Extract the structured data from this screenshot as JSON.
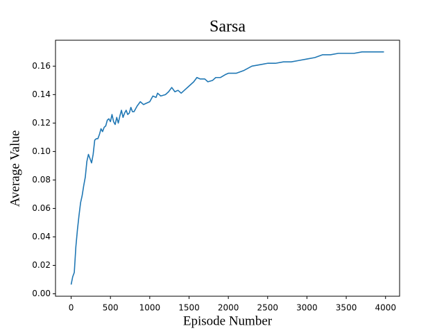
{
  "chart_data": {
    "type": "line",
    "title": "Sarsa",
    "x_label": "Episode Number",
    "y_label": "Average Value",
    "x": [
      0,
      20,
      40,
      60,
      80,
      100,
      120,
      140,
      160,
      180,
      200,
      220,
      240,
      260,
      280,
      300,
      320,
      340,
      360,
      380,
      400,
      420,
      440,
      460,
      480,
      500,
      520,
      540,
      560,
      580,
      600,
      620,
      640,
      660,
      680,
      700,
      720,
      740,
      760,
      780,
      800,
      840,
      880,
      920,
      960,
      1000,
      1040,
      1080,
      1100,
      1140,
      1200,
      1240,
      1280,
      1320,
      1360,
      1400,
      1440,
      1480,
      1520,
      1560,
      1600,
      1640,
      1700,
      1740,
      1800,
      1840,
      1900,
      1960,
      2000,
      2100,
      2200,
      2300,
      2400,
      2500,
      2600,
      2700,
      2800,
      2900,
      3000,
      3100,
      3200,
      3300,
      3400,
      3500,
      3600,
      3700,
      3800,
      3980
    ],
    "series": [
      {
        "name": "Sarsa",
        "color": "#1f77b4",
        "values": [
          0.0065,
          0.012,
          0.015,
          0.033,
          0.045,
          0.055,
          0.064,
          0.069,
          0.076,
          0.082,
          0.093,
          0.098,
          0.095,
          0.092,
          0.098,
          0.108,
          0.109,
          0.109,
          0.112,
          0.116,
          0.114,
          0.117,
          0.118,
          0.122,
          0.123,
          0.121,
          0.126,
          0.121,
          0.119,
          0.124,
          0.12,
          0.125,
          0.129,
          0.124,
          0.127,
          0.129,
          0.126,
          0.127,
          0.131,
          0.128,
          0.128,
          0.132,
          0.135,
          0.133,
          0.134,
          0.135,
          0.139,
          0.138,
          0.141,
          0.139,
          0.14,
          0.142,
          0.145,
          0.142,
          0.143,
          0.141,
          0.143,
          0.145,
          0.147,
          0.149,
          0.152,
          0.151,
          0.151,
          0.149,
          0.15,
          0.152,
          0.152,
          0.154,
          0.155,
          0.155,
          0.157,
          0.16,
          0.161,
          0.162,
          0.162,
          0.163,
          0.163,
          0.164,
          0.165,
          0.166,
          0.168,
          0.168,
          0.169,
          0.169,
          0.169,
          0.17,
          0.17,
          0.17
        ]
      }
    ],
    "xlim": [
      -199,
      4179
    ],
    "xticks": [
      0,
      500,
      1000,
      1500,
      2000,
      2500,
      3000,
      3500,
      4000
    ],
    "ylim": [
      -0.0017,
      0.1782
    ],
    "yticks": [
      {
        "value": 0,
        "label": "0.00"
      },
      0.02,
      0.04,
      0.06,
      0.08,
      {
        "value": 0.1,
        "label": "0.10"
      },
      0.12,
      0.14,
      0.16
    ]
  }
}
